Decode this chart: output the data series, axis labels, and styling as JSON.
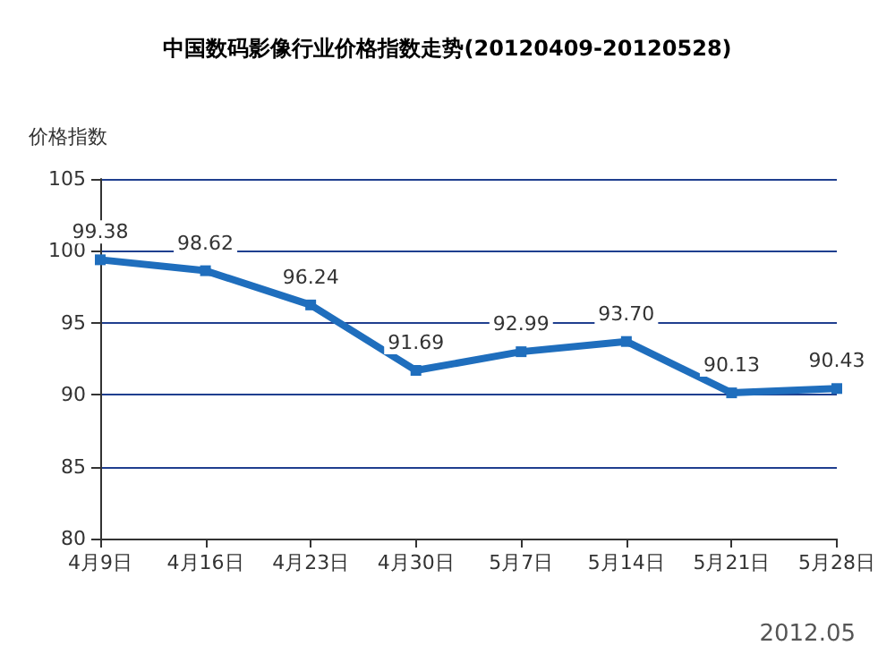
{
  "chart_data": {
    "type": "line",
    "title": "中国数码影像行业价格指数走势(20120409-20120528)",
    "ylabel": "价格指数",
    "categories": [
      "4月9日",
      "4月16日",
      "4月23日",
      "4月30日",
      "5月7日",
      "5月14日",
      "5月21日",
      "5月28日"
    ],
    "series": [
      {
        "color": "#1f6ebd",
        "values": [
          99.38,
          98.62,
          96.24,
          91.69,
          92.99,
          93.7,
          90.13,
          90.43
        ],
        "value_labels": [
          "99.38",
          "98.62",
          "96.24",
          "91.69",
          "92.99",
          "93.70",
          "90.13",
          "90.43"
        ]
      }
    ],
    "ylim": [
      80,
      105
    ],
    "yticks": [
      80,
      85,
      90,
      95,
      100,
      105
    ],
    "grid": "y",
    "marker": "square",
    "line_style": "solid",
    "annotations": [
      "2012.05"
    ]
  }
}
